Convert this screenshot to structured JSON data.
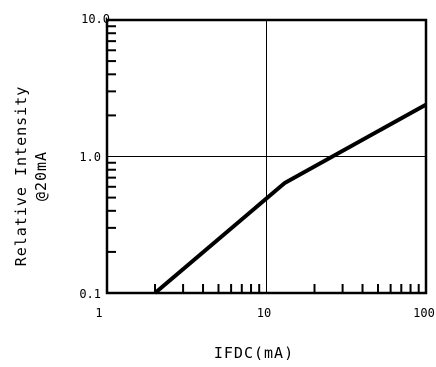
{
  "chart_data": {
    "type": "line",
    "xlabel": "IFDC(mA)",
    "ylabel_lines": [
      "Relative Intensity",
      "@20mA"
    ],
    "x_scale": "log",
    "y_scale": "log",
    "xlim": [
      1,
      100
    ],
    "ylim": [
      0.1,
      10.0
    ],
    "x_tick_labels": [
      "1",
      "10",
      "100"
    ],
    "y_tick_labels": [
      "0.1",
      "1.0",
      "10.0"
    ],
    "grid": "major",
    "series": [
      {
        "x": [
          2,
          13,
          100
        ],
        "y": [
          0.1,
          0.64,
          2.4
        ],
        "color": "#000000"
      }
    ]
  }
}
